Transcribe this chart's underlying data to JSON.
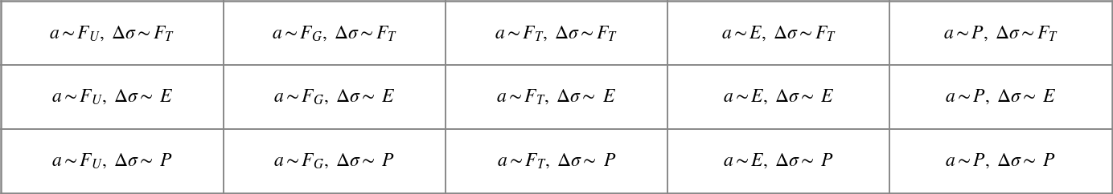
{
  "rows": 3,
  "cols": 5,
  "cells": [
    [
      "$a{\\sim}F_U,\\ \\Delta\\sigma{\\sim}F_T$",
      "$a{\\sim}F_G,\\ \\Delta\\sigma{\\sim}F_T$",
      "$a{\\sim}F_T,\\ \\Delta\\sigma{\\sim}F_T$",
      "$a{\\sim}E,\\ \\Delta\\sigma{\\sim}F_T$",
      "$a{\\sim}P,\\ \\Delta\\sigma{\\sim}F_T$"
    ],
    [
      "$a{\\sim}F_U,\\ \\Delta\\sigma{\\sim}\\ E$",
      "$a{\\sim}F_G,\\ \\Delta\\sigma{\\sim}\\ E$",
      "$a{\\sim}F_T,\\ \\Delta\\sigma{\\sim}\\ E$",
      "$a{\\sim}E,\\ \\Delta\\sigma{\\sim}\\ E$",
      "$a{\\sim}P,\\ \\Delta\\sigma{\\sim}\\ E$"
    ],
    [
      "$a{\\sim}F_U,\\ \\Delta\\sigma{\\sim}\\ P$",
      "$a{\\sim}F_G,\\ \\Delta\\sigma{\\sim}\\ P$",
      "$a{\\sim}F_T,\\ \\Delta\\sigma{\\sim}\\ P$",
      "$a{\\sim}E,\\ \\Delta\\sigma{\\sim}\\ P$",
      "$a{\\sim}P,\\ \\Delta\\sigma{\\sim}\\ P$"
    ]
  ],
  "background_color": "#ffffff",
  "line_color": "#888888",
  "text_color": "#000000",
  "fontsize": 17,
  "fig_width": 13.84,
  "fig_height": 2.42,
  "dpi": 100
}
